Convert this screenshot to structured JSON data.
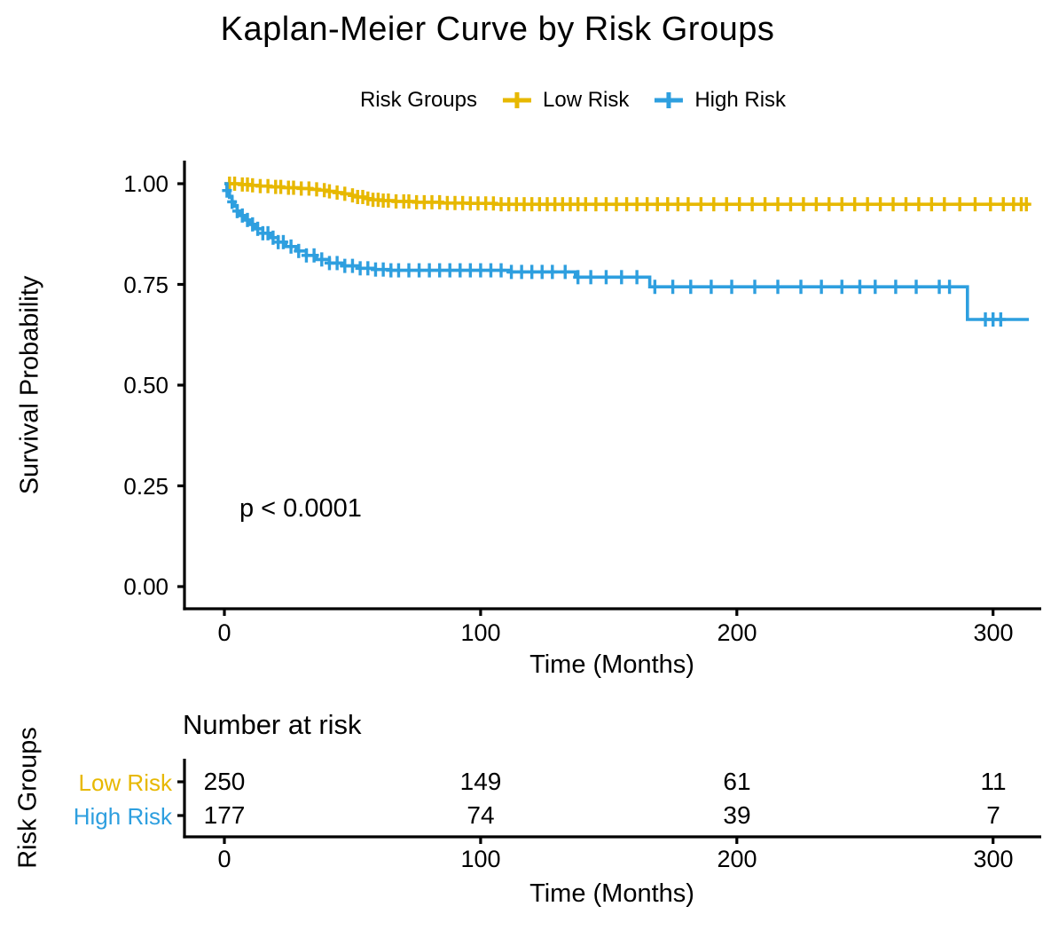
{
  "title": "Kaplan-Meier Curve by Risk Groups",
  "legend": {
    "title": "Risk Groups",
    "items": [
      {
        "label": "Low Risk",
        "color": "#E7B800"
      },
      {
        "label": "High Risk",
        "color": "#2E9FDF"
      }
    ]
  },
  "annotation": {
    "p_value": "p < 0.0001"
  },
  "axes": {
    "y_label": "Survival Probability",
    "x_label": "Time (Months)",
    "y_ticks": [
      "1.00",
      "0.75",
      "0.50",
      "0.25",
      "0.00"
    ],
    "x_ticks": [
      "0",
      "100",
      "200",
      "300"
    ]
  },
  "risk_table": {
    "title": "Number at risk",
    "y_label": "Risk Groups",
    "x_label": "Time (Months)",
    "x_ticks": [
      "0",
      "100",
      "200",
      "300"
    ],
    "rows": [
      {
        "label": "Low Risk",
        "color": "#E7B800",
        "counts": [
          250,
          149,
          61,
          11
        ]
      },
      {
        "label": "High Risk",
        "color": "#2E9FDF",
        "counts": [
          177,
          74,
          39,
          7
        ]
      }
    ]
  },
  "colors": {
    "low_risk": "#E7B800",
    "high_risk": "#2E9FDF",
    "axis": "#000000",
    "background": "#FFFFFF"
  },
  "chart_data": {
    "type": "line",
    "subtype": "kaplan-meier-step",
    "title": "Kaplan-Meier Curve by Risk Groups",
    "xlabel": "Time (Months)",
    "ylabel": "Survival Probability",
    "xlim": [
      0,
      314
    ],
    "ylim": [
      0.0,
      1.0
    ],
    "x_tick_values": [
      0,
      100,
      200,
      300
    ],
    "y_tick_values": [
      1.0,
      0.75,
      0.5,
      0.25,
      0.0
    ],
    "grid": false,
    "legend_position": "top",
    "p_value_annotation": "p < 0.0001",
    "series": [
      {
        "name": "Low Risk",
        "color": "#E7B800",
        "steps": [
          [
            0,
            1.0
          ],
          [
            6,
            0.998
          ],
          [
            10,
            0.996
          ],
          [
            14,
            0.994
          ],
          [
            18,
            0.992
          ],
          [
            23,
            0.99
          ],
          [
            30,
            0.988
          ],
          [
            34,
            0.986
          ],
          [
            37,
            0.984
          ],
          [
            40,
            0.981
          ],
          [
            43,
            0.978
          ],
          [
            46,
            0.975
          ],
          [
            49,
            0.971
          ],
          [
            52,
            0.967
          ],
          [
            55,
            0.963
          ],
          [
            58,
            0.96
          ],
          [
            62,
            0.958
          ],
          [
            66,
            0.956
          ],
          [
            75,
            0.954
          ],
          [
            85,
            0.952
          ],
          [
            95,
            0.951
          ],
          [
            106,
            0.949
          ]
        ],
        "censor_times": [
          2,
          4,
          7,
          9,
          11,
          14,
          17,
          20,
          22,
          25,
          27,
          30,
          33,
          36,
          39,
          41,
          44,
          47,
          50,
          52,
          54,
          56,
          58,
          60,
          62,
          64,
          67,
          70,
          72,
          75,
          78,
          81,
          84,
          87,
          90,
          93,
          96,
          99,
          102,
          105,
          108,
          111,
          114,
          117,
          120,
          123,
          126,
          129,
          132,
          135,
          138,
          141,
          145,
          149,
          153,
          157,
          161,
          165,
          169,
          173,
          177,
          181,
          186,
          191,
          196,
          201,
          206,
          211,
          216,
          221,
          226,
          231,
          236,
          241,
          246,
          251,
          256,
          261,
          266,
          271,
          276,
          281,
          287,
          293,
          299,
          304,
          308,
          311,
          313
        ]
      },
      {
        "name": "High Risk",
        "color": "#2E9FDF",
        "steps": [
          [
            0,
            1.0
          ],
          [
            1,
            0.983
          ],
          [
            2,
            0.966
          ],
          [
            3,
            0.955
          ],
          [
            4,
            0.944
          ],
          [
            5,
            0.932
          ],
          [
            6,
            0.921
          ],
          [
            8,
            0.91
          ],
          [
            10,
            0.899
          ],
          [
            12,
            0.888
          ],
          [
            15,
            0.877
          ],
          [
            18,
            0.866
          ],
          [
            21,
            0.855
          ],
          [
            24,
            0.844
          ],
          [
            28,
            0.833
          ],
          [
            32,
            0.822
          ],
          [
            36,
            0.812
          ],
          [
            41,
            0.803
          ],
          [
            46,
            0.796
          ],
          [
            52,
            0.79
          ],
          [
            58,
            0.787
          ],
          [
            65,
            0.785
          ],
          [
            111,
            0.781
          ],
          [
            137,
            0.768
          ],
          [
            166,
            0.744
          ],
          [
            290,
            0.663
          ]
        ],
        "censor_times": [
          1,
          3,
          5,
          7,
          9,
          11,
          13,
          15,
          17,
          19,
          21,
          23,
          26,
          29,
          32,
          35,
          38,
          41,
          44,
          47,
          50,
          53,
          56,
          59,
          62,
          65,
          68,
          72,
          76,
          80,
          84,
          88,
          92,
          96,
          100,
          104,
          108,
          112,
          116,
          120,
          124,
          128,
          133,
          138,
          143,
          149,
          155,
          161,
          168,
          175,
          182,
          190,
          198,
          207,
          216,
          225,
          233,
          241,
          248,
          254,
          262,
          270,
          279,
          283,
          297,
          300,
          303
        ]
      }
    ],
    "number_at_risk": {
      "times": [
        0,
        100,
        200,
        300
      ],
      "low_risk": [
        250,
        149,
        61,
        11
      ],
      "high_risk": [
        177,
        74,
        39,
        7
      ]
    }
  }
}
